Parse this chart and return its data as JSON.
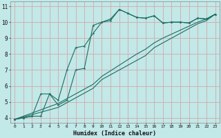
{
  "xlabel": "Humidex (Indice chaleur)",
  "bg_color": "#c2e8e8",
  "grid_color": "#d4a8a8",
  "line_color": "#1a6e62",
  "xmin": -0.5,
  "xmax": 23.5,
  "ymin": 3.7,
  "ymax": 11.3,
  "yticks": [
    4,
    5,
    6,
    7,
    8,
    9,
    10,
    11
  ],
  "xticks": [
    0,
    1,
    2,
    3,
    4,
    5,
    6,
    7,
    8,
    9,
    10,
    11,
    12,
    13,
    14,
    15,
    16,
    17,
    18,
    19,
    20,
    21,
    22,
    23
  ],
  "curve1_x": [
    0,
    1,
    2,
    3,
    4,
    5,
    6,
    7,
    8,
    9,
    10,
    11,
    12,
    13,
    14,
    15,
    16,
    17,
    18,
    19,
    20,
    21,
    22,
    23
  ],
  "curve1_y": [
    3.9,
    4.0,
    4.1,
    5.5,
    5.5,
    5.1,
    7.0,
    8.4,
    8.5,
    9.3,
    10.0,
    10.1,
    10.8,
    10.55,
    10.3,
    10.25,
    10.4,
    9.95,
    10.0,
    10.0,
    9.95,
    10.25,
    10.2,
    10.5
  ],
  "curve2_x": [
    0,
    1,
    2,
    3,
    4,
    5,
    6,
    7,
    8,
    9,
    10,
    11,
    12,
    13,
    14,
    15,
    16,
    17,
    18,
    19,
    20,
    21,
    22,
    23
  ],
  "curve2_y": [
    3.9,
    4.0,
    4.1,
    4.1,
    5.5,
    4.8,
    5.1,
    7.0,
    7.1,
    9.8,
    10.0,
    10.2,
    10.8,
    10.55,
    10.3,
    10.25,
    10.4,
    9.95,
    10.0,
    10.0,
    9.95,
    10.25,
    10.2,
    10.5
  ],
  "line1_x": [
    0,
    1,
    2,
    3,
    4,
    5,
    6,
    7,
    8,
    9,
    10,
    11,
    12,
    13,
    14,
    15,
    16,
    17,
    18,
    19,
    20,
    21,
    22,
    23
  ],
  "line1_y": [
    3.9,
    4.05,
    4.2,
    4.35,
    4.5,
    4.65,
    4.95,
    5.25,
    5.55,
    5.85,
    6.4,
    6.7,
    7.0,
    7.3,
    7.6,
    7.9,
    8.4,
    8.7,
    9.0,
    9.3,
    9.6,
    9.9,
    10.1,
    10.5
  ],
  "line2_x": [
    0,
    1,
    2,
    3,
    4,
    5,
    6,
    7,
    8,
    9,
    10,
    11,
    12,
    13,
    14,
    15,
    16,
    17,
    18,
    19,
    20,
    21,
    22,
    23
  ],
  "line2_y": [
    3.9,
    4.1,
    4.3,
    4.5,
    4.7,
    4.9,
    5.2,
    5.5,
    5.8,
    6.1,
    6.6,
    6.95,
    7.3,
    7.65,
    8.0,
    8.3,
    8.7,
    9.0,
    9.25,
    9.5,
    9.75,
    10.0,
    10.2,
    10.5
  ]
}
